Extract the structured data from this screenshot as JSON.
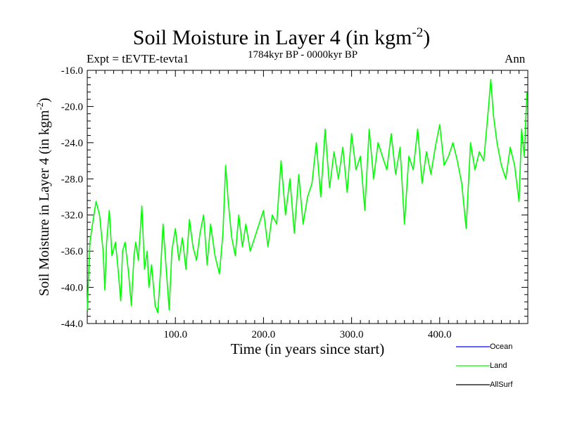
{
  "colors": {
    "ocean": "#0000ff",
    "land": "#00ff00",
    "allsurf": "#000000"
  },
  "title_main": "Soil Moisture in Layer 4 (in kgm",
  "title_sup": "-2",
  "title_close": ")",
  "subtitle": "1784kyr BP - 0000kyr BP",
  "expt": "Expt = tEVTE-tevta1",
  "season": "Ann",
  "ylabel_main": "Soil Moisture in Layer 4 (in kgm",
  "ylabel_sup": "-2",
  "ylabel_close": ")",
  "chart_data": {
    "type": "line",
    "title": "Soil Moisture in Layer 4 (in kgm-2)",
    "xlabel": "Time (in years since start)",
    "ylabel": "Soil Moisture in Layer 4 (in kgm-2)",
    "xlim": [
      0,
      500
    ],
    "ylim": [
      -44.0,
      -16.0
    ],
    "xticks": [
      100.0,
      200.0,
      300.0,
      400.0
    ],
    "xtick_labels": [
      "100.0",
      "200.0",
      "300.0",
      "400.0"
    ],
    "yticks": [
      -44.0,
      -40.0,
      -36.0,
      -32.0,
      -28.0,
      -24.0,
      -20.0,
      -16.0
    ],
    "ytick_labels": [
      "-44.0",
      "-40.0",
      "-36.0",
      "-32.0",
      "-28.0",
      "-24.0",
      "-20.0",
      "-16.0"
    ],
    "legend": [
      "Ocean",
      "Land",
      "AllSurf"
    ],
    "legend_position": "bottom-right",
    "series": [
      {
        "name": "Land",
        "x": [
          0,
          3,
          6,
          10,
          14,
          18,
          20,
          22,
          25,
          28,
          32,
          35,
          38,
          40,
          43,
          47,
          50,
          53,
          55,
          58,
          62,
          65,
          68,
          70,
          73,
          77,
          80,
          83,
          86,
          90,
          93,
          96,
          100,
          104,
          108,
          112,
          116,
          120,
          124,
          128,
          132,
          136,
          140,
          145,
          150,
          154,
          157,
          160,
          164,
          168,
          172,
          176,
          180,
          185,
          190,
          195,
          200,
          205,
          210,
          215,
          220,
          225,
          230,
          235,
          240,
          245,
          250,
          255,
          260,
          265,
          270,
          275,
          280,
          285,
          290,
          295,
          300,
          305,
          310,
          315,
          320,
          325,
          330,
          335,
          340,
          345,
          350,
          355,
          360,
          365,
          370,
          375,
          380,
          385,
          390,
          395,
          400,
          405,
          410,
          415,
          420,
          425,
          430,
          435,
          440,
          445,
          450,
          455,
          458,
          461,
          465,
          470,
          475,
          480,
          485,
          490,
          493,
          496,
          499
        ],
        "y": [
          -42.5,
          -35.0,
          -33.0,
          -30.5,
          -32.0,
          -36.0,
          -40.3,
          -35.0,
          -31.5,
          -36.5,
          -35.0,
          -38.0,
          -41.5,
          -36.0,
          -35.0,
          -38.5,
          -42.0,
          -36.5,
          -35.0,
          -37.0,
          -31.0,
          -38.0,
          -36.0,
          -40.0,
          -37.5,
          -42.0,
          -42.8,
          -38.5,
          -33.0,
          -38.5,
          -42.5,
          -36.0,
          -33.5,
          -37.0,
          -34.5,
          -38.0,
          -32.5,
          -35.5,
          -37.0,
          -34.0,
          -32.0,
          -37.5,
          -33.0,
          -36.5,
          -38.5,
          -34.0,
          -26.5,
          -30.5,
          -34.5,
          -36.5,
          -32.0,
          -35.5,
          -33.0,
          -36.0,
          -34.5,
          -33.0,
          -31.5,
          -35.5,
          -32.0,
          -33.0,
          -26.0,
          -32.0,
          -28.0,
          -34.0,
          -27.5,
          -33.0,
          -30.0,
          -28.5,
          -24.0,
          -30.0,
          -22.5,
          -29.0,
          -25.0,
          -28.0,
          -24.5,
          -29.5,
          -23.0,
          -27.0,
          -25.5,
          -31.5,
          -22.5,
          -28.0,
          -24.0,
          -25.5,
          -27.0,
          -23.0,
          -27.5,
          -24.5,
          -33.0,
          -25.5,
          -27.0,
          -22.5,
          -28.5,
          -25.0,
          -27.5,
          -24.5,
          -22.0,
          -26.5,
          -25.5,
          -24.0,
          -26.0,
          -28.5,
          -33.5,
          -24.0,
          -27.0,
          -25.0,
          -26.0,
          -20.5,
          -17.0,
          -21.0,
          -24.0,
          -26.5,
          -28.0,
          -24.5,
          -26.5,
          -30.5,
          -22.5,
          -25.5,
          -18.5
        ]
      },
      {
        "name": "Ocean",
        "x": [],
        "y": []
      },
      {
        "name": "AllSurf",
        "x": [],
        "y": []
      }
    ]
  },
  "legend": {
    "ocean_label": "Ocean",
    "land_label": "Land",
    "allsurf_label": "AllSurf"
  }
}
